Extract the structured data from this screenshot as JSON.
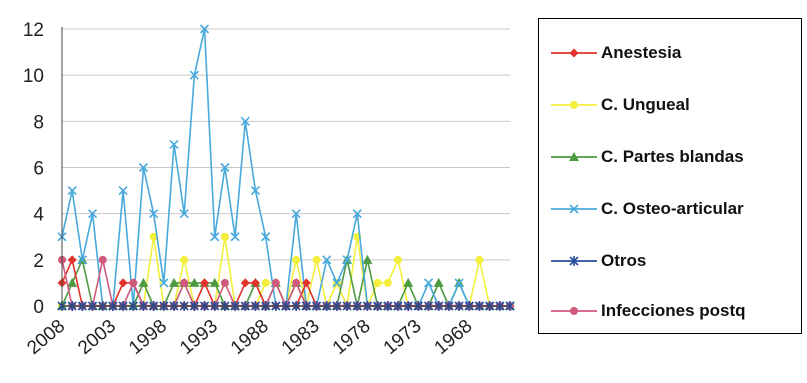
{
  "chart_data": {
    "type": "line",
    "x_tick_labels": [
      "2008",
      "2003",
      "1998",
      "1993",
      "1988",
      "1983",
      "1978",
      "1973",
      "1968"
    ],
    "y_tick_labels": [
      "0",
      "2",
      "4",
      "6",
      "8",
      "10",
      "12"
    ],
    "x_range": [
      2008,
      1964
    ],
    "ylim": [
      0,
      12
    ],
    "grid": true,
    "legend_position": "right",
    "colors": {
      "Anestesia": "#e2322a",
      "C. Ungueal": "#f3ef3c",
      "C. Partes blandas": "#4e9a43",
      "C. Osteo-articular": "#48a9dc",
      "Otros": "#2a4d9b",
      "Infecciones postq": "#d05a7c"
    },
    "x": [
      2008,
      2007,
      2006,
      2005,
      2004,
      2003,
      2002,
      2001,
      2000,
      1999,
      1998,
      1997,
      1996,
      1995,
      1994,
      1993,
      1992,
      1991,
      1990,
      1989,
      1988,
      1987,
      1986,
      1985,
      1984,
      1983,
      1982,
      1981,
      1980,
      1979,
      1978,
      1977,
      1976,
      1975,
      1974,
      1973,
      1972,
      1971,
      1970,
      1969,
      1968,
      1967,
      1966,
      1965,
      1964
    ],
    "series": [
      {
        "name": "Anestesia",
        "values": [
          1,
          2,
          0,
          0,
          0,
          0,
          1,
          1,
          0,
          0,
          0,
          0,
          0,
          0,
          1,
          0,
          0,
          0,
          1,
          1,
          0,
          0,
          0,
          0,
          1,
          0,
          0,
          0,
          0,
          0,
          0,
          0,
          0,
          0,
          0,
          0,
          0,
          0,
          0,
          0,
          0,
          0,
          0,
          0,
          0
        ]
      },
      {
        "name": "C. Ungueal",
        "values": [
          0,
          0,
          0,
          0,
          0,
          0,
          0,
          0,
          0,
          3,
          0,
          0,
          2,
          0,
          0,
          0,
          3,
          0,
          0,
          0,
          1,
          1,
          0,
          2,
          0,
          2,
          0,
          1,
          0,
          3,
          0,
          1,
          1,
          2,
          0,
          0,
          0,
          0,
          0,
          0,
          0,
          2,
          0,
          0,
          0
        ]
      },
      {
        "name": "C. Partes blandas",
        "values": [
          0,
          1,
          2,
          0,
          0,
          0,
          0,
          0,
          1,
          0,
          0,
          1,
          1,
          1,
          1,
          1,
          0,
          0,
          0,
          1,
          0,
          1,
          0,
          1,
          0,
          0,
          0,
          0,
          2,
          0,
          2,
          0,
          0,
          0,
          1,
          0,
          0,
          1,
          0,
          1,
          0,
          0,
          0,
          0,
          0
        ]
      },
      {
        "name": "C. Osteo-articular",
        "values": [
          3,
          5,
          2,
          4,
          0,
          0,
          5,
          0,
          6,
          4,
          1,
          7,
          4,
          10,
          12,
          3,
          6,
          3,
          8,
          5,
          3,
          0,
          0,
          4,
          0,
          0,
          2,
          1,
          2,
          4,
          0,
          0,
          0,
          0,
          0,
          0,
          1,
          0,
          0,
          1,
          0,
          0,
          0,
          0,
          0
        ]
      },
      {
        "name": "Otros",
        "values": [
          0,
          0,
          0,
          0,
          0,
          0,
          0,
          0,
          0,
          0,
          0,
          0,
          0,
          0,
          0,
          0,
          0,
          0,
          0,
          0,
          0,
          0,
          0,
          0,
          0,
          0,
          0,
          0,
          0,
          0,
          0,
          0,
          0,
          0,
          0,
          0,
          0,
          0,
          0,
          0,
          0,
          0,
          0,
          0,
          0
        ]
      },
      {
        "name": "Infecciones postq",
        "values": [
          2,
          0,
          0,
          0,
          2,
          0,
          0,
          1,
          0,
          0,
          0,
          0,
          1,
          0,
          0,
          0,
          1,
          0,
          0,
          0,
          0,
          1,
          0,
          1,
          0,
          0,
          0,
          0,
          0,
          0,
          0,
          0,
          0,
          0,
          0,
          0,
          0,
          0,
          0,
          0,
          0,
          0,
          0,
          0,
          0
        ]
      }
    ]
  },
  "legend": {
    "items": [
      {
        "label": "Anestesia",
        "marker": "diamond"
      },
      {
        "label": "C. Ungueal",
        "marker": "circle"
      },
      {
        "label": "C. Partes blandas",
        "marker": "triangle"
      },
      {
        "label": "C. Osteo-articular",
        "marker": "x"
      },
      {
        "label": "Otros",
        "marker": "star"
      },
      {
        "label": "Infecciones postq",
        "marker": "circle"
      }
    ]
  }
}
